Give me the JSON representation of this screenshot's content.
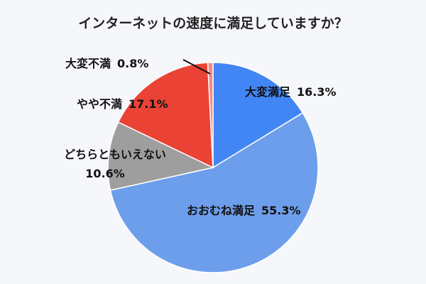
{
  "chart_data": {
    "type": "pie",
    "title": "インターネットの速度に満足していますか？",
    "unit": "%",
    "slices": [
      {
        "label": "大変満足",
        "value": 16.3,
        "display": "16.3%",
        "color": "#4285f4"
      },
      {
        "label": "おおむね満足",
        "value": 55.3,
        "display": "55.3%",
        "color": "#6d9eeb"
      },
      {
        "label": "どちらともいえない",
        "value": 10.6,
        "display": "10.6%",
        "color": "#9e9e9e"
      },
      {
        "label": "やや不満",
        "value": 17.1,
        "display": "17.1%",
        "color": "#ea4335"
      },
      {
        "label": "大変不満",
        "value": 0.8,
        "display": "0.8%",
        "color": "#f08c84"
      }
    ],
    "start_direction": "top",
    "direction": "clockwise"
  }
}
